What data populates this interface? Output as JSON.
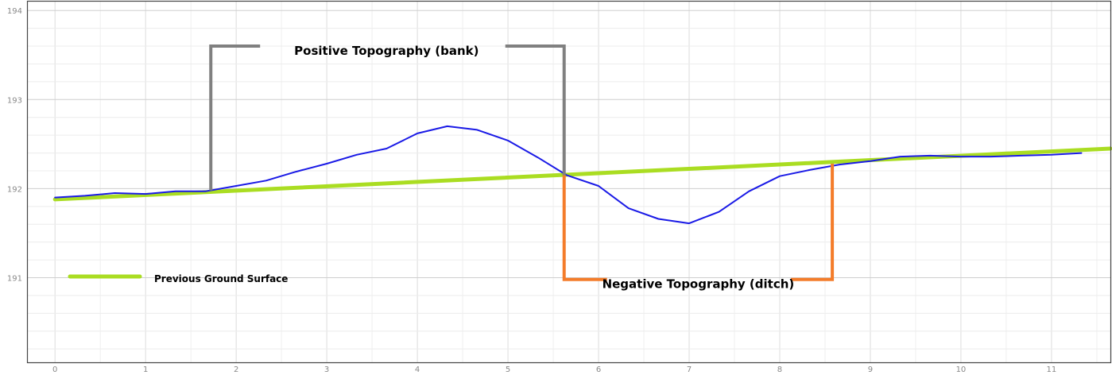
{
  "chart_data": {
    "type": "line",
    "x_ticks": [
      0,
      1,
      2,
      3,
      4,
      5,
      6,
      7,
      8,
      9,
      10,
      11
    ],
    "y_ticks": [
      191,
      192,
      193,
      194
    ],
    "xlim": [
      -0.3,
      11.65
    ],
    "ylim": [
      190.05,
      194.1
    ],
    "grid": true,
    "legend_position": "bottom-left",
    "series": [
      {
        "name": "Previous Ground Surface",
        "color": "#aadd22",
        "x": [
          0,
          11.65
        ],
        "y": [
          191.88,
          192.45
        ]
      },
      {
        "color": "#1a1ae6",
        "x": [
          0,
          0.33,
          0.66,
          1.0,
          1.33,
          1.66,
          2.0,
          2.33,
          2.66,
          3.0,
          3.33,
          3.66,
          4.0,
          4.33,
          4.66,
          5.0,
          5.33,
          5.65,
          6.0,
          6.33,
          6.66,
          7.0,
          7.33,
          7.66,
          8.0,
          8.33,
          8.66,
          9.0,
          9.33,
          9.66,
          10.0,
          10.33,
          10.66,
          11.0,
          11.33
        ],
        "y": [
          191.9,
          191.92,
          191.95,
          191.94,
          191.97,
          191.97,
          192.03,
          192.09,
          192.19,
          192.28,
          192.38,
          192.45,
          192.62,
          192.7,
          192.66,
          192.54,
          192.35,
          192.15,
          192.03,
          191.78,
          191.66,
          191.61,
          191.74,
          191.97,
          192.14,
          192.21,
          192.27,
          192.31,
          192.36,
          192.37,
          192.36,
          192.36,
          192.37,
          192.38,
          192.4
        ]
      }
    ],
    "annotations": [
      {
        "text": "Positive Topography (bank)",
        "color": "#808080",
        "x_start": 1.72,
        "x_end": 5.62,
        "y_top": 193.6,
        "y_bottom": 191.98,
        "text_x": 3.66,
        "size": 15
      },
      {
        "text": "Negative Topography (ditch)",
        "color": "#f47c2a",
        "x_start": 5.62,
        "x_end": 8.58,
        "y_bottom": 190.98,
        "y_top": 192.28,
        "text_x": 7.1,
        "size": 15
      },
      {
        "text": "Previous Ground Surface",
        "color": "#aadd22",
        "legend": true
      }
    ]
  }
}
